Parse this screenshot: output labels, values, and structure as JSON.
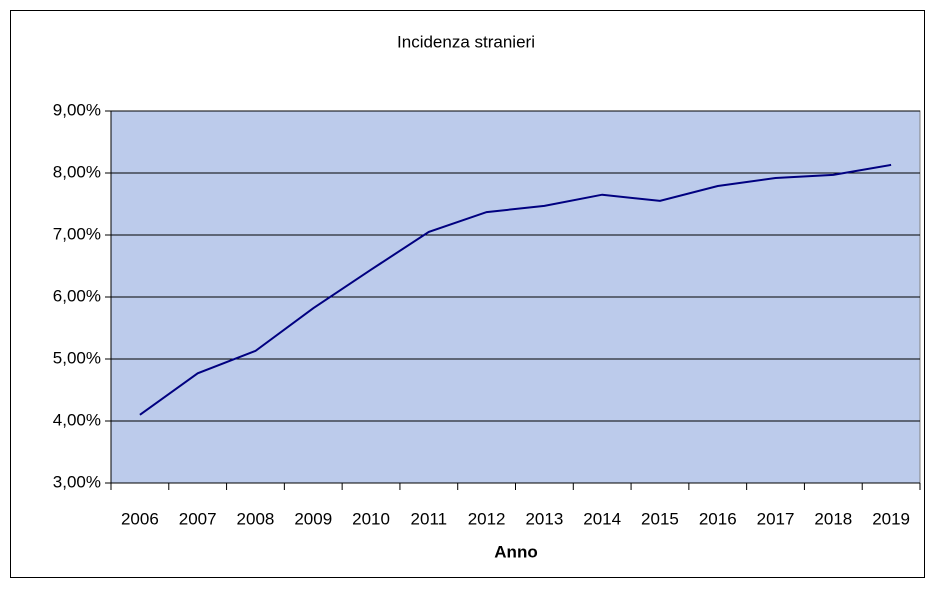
{
  "chart_data": {
    "type": "line",
    "title": "Incidenza stranieri",
    "x_label": "Anno",
    "categories": [
      "2006",
      "2007",
      "2008",
      "2009",
      "2010",
      "2011",
      "2012",
      "2013",
      "2014",
      "2015",
      "2016",
      "2017",
      "2018",
      "2019"
    ],
    "series": [
      {
        "name": "Incidenza stranieri",
        "color": "#000080",
        "values": [
          4.1,
          4.77,
          5.13,
          5.82,
          6.44,
          7.05,
          7.37,
          7.47,
          7.65,
          7.55,
          7.79,
          7.92,
          7.97,
          8.13
        ]
      }
    ],
    "ylim": [
      3,
      9
    ],
    "yticks": [
      {
        "value": 3,
        "label": "3,00%"
      },
      {
        "value": 4,
        "label": "4,00%"
      },
      {
        "value": 5,
        "label": "5,00%"
      },
      {
        "value": 6,
        "label": "6,00%"
      },
      {
        "value": 7,
        "label": "7,00%"
      },
      {
        "value": 8,
        "label": "8,00%"
      },
      {
        "value": 9,
        "label": "9,00%"
      }
    ],
    "grid": true,
    "plot_background": "#bccbeb"
  }
}
